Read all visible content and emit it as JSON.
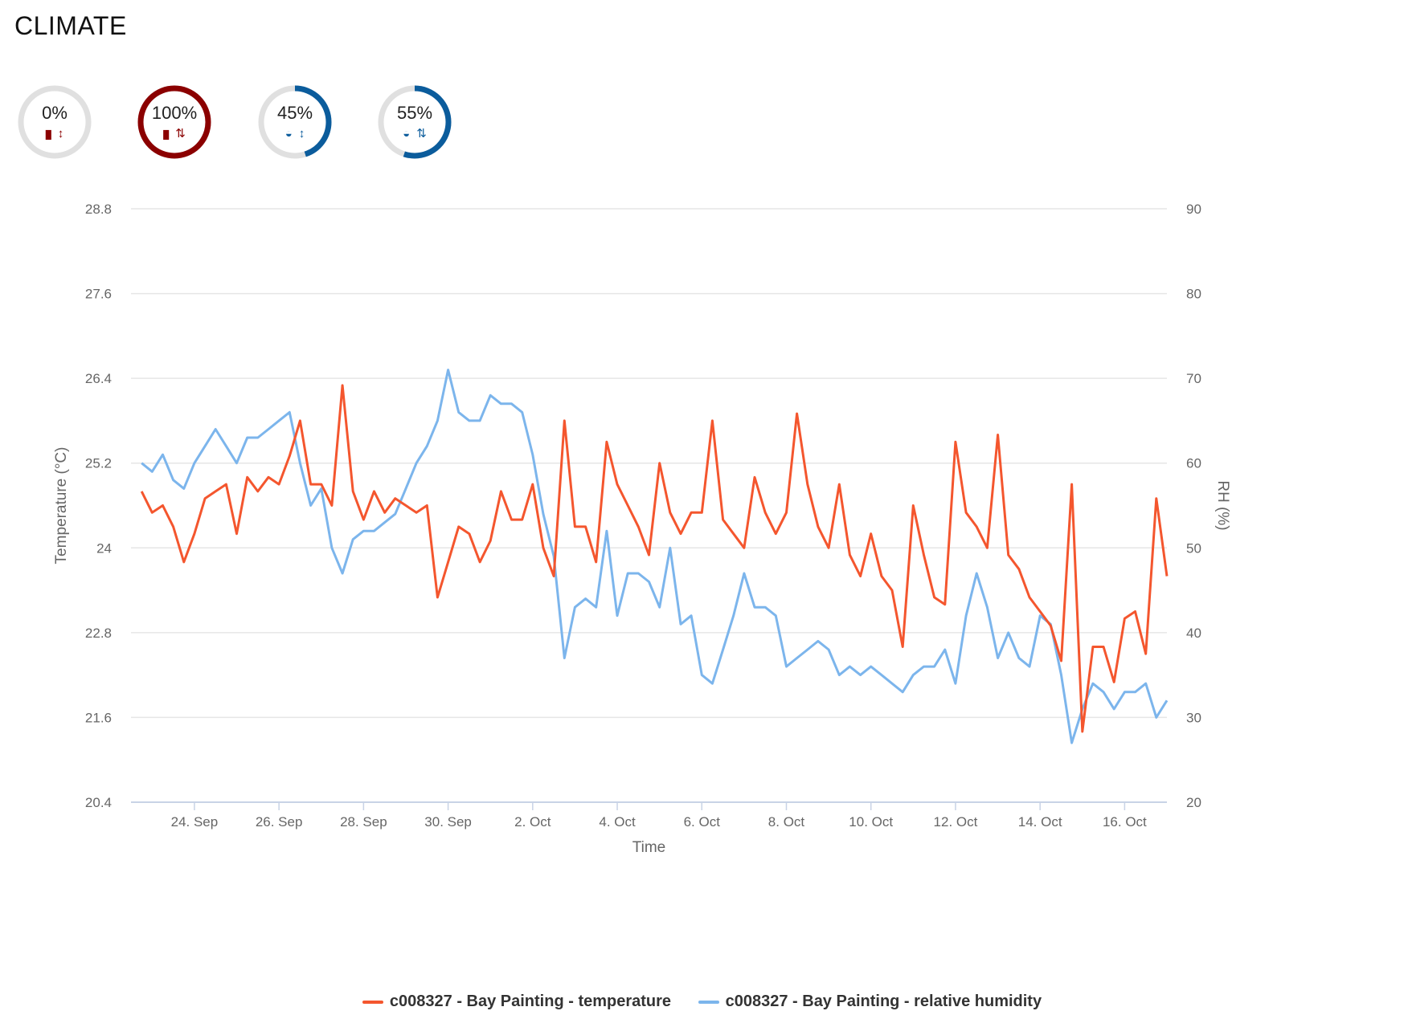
{
  "page": {
    "title": "CLIMATE"
  },
  "colors": {
    "temperature": "#f4562e",
    "humidity": "#7cb5ec",
    "temp_gauge": "#8b0000",
    "rh_gauge": "#0b5c9c",
    "track": "#e0e0e0"
  },
  "gauges": [
    {
      "label": "0%",
      "fraction": 0.0,
      "kind": "temperature",
      "mode": "single",
      "icons": [
        "thermometer-icon",
        "arrow-up-down-icon"
      ]
    },
    {
      "label": "100%",
      "fraction": 1.0,
      "kind": "temperature",
      "mode": "double",
      "icons": [
        "thermometer-icon",
        "arrows-up-down-icon"
      ]
    },
    {
      "label": "45%",
      "fraction": 0.45,
      "kind": "humidity",
      "mode": "single",
      "icons": [
        "water-drop-icon",
        "arrow-up-down-icon"
      ]
    },
    {
      "label": "55%",
      "fraction": 0.55,
      "kind": "humidity",
      "mode": "double",
      "icons": [
        "water-drop-icon",
        "arrows-up-down-icon"
      ]
    }
  ],
  "chart_data": {
    "type": "line",
    "xlabel": "Time",
    "ylabel": "Temperature (°C)",
    "y2label": "RH (%)",
    "xlim": [
      "2023-09-22T12:00",
      "2023-10-17T00:00"
    ],
    "ylim": [
      20.4,
      28.8
    ],
    "y2lim": [
      20,
      90
    ],
    "yticks": [
      "28.8",
      "27.6",
      "26.4",
      "25.2",
      "24",
      "22.8",
      "21.6",
      "20.4"
    ],
    "y2ticks": [
      "90",
      "80",
      "70",
      "60",
      "50",
      "40",
      "30",
      "20"
    ],
    "xticks": [
      {
        "label": "24. Sep",
        "date": "2023-09-24"
      },
      {
        "label": "26. Sep",
        "date": "2023-09-26"
      },
      {
        "label": "28. Sep",
        "date": "2023-09-28"
      },
      {
        "label": "30. Sep",
        "date": "2023-09-30"
      },
      {
        "label": "2. Oct",
        "date": "2023-10-02"
      },
      {
        "label": "4. Oct",
        "date": "2023-10-04"
      },
      {
        "label": "6. Oct",
        "date": "2023-10-06"
      },
      {
        "label": "8. Oct",
        "date": "2023-10-08"
      },
      {
        "label": "10. Oct",
        "date": "2023-10-10"
      },
      {
        "label": "12. Oct",
        "date": "2023-10-12"
      },
      {
        "label": "14. Oct",
        "date": "2023-10-14"
      },
      {
        "label": "16. Oct",
        "date": "2023-10-16"
      }
    ],
    "grid": true,
    "legend_position": "bottom-center",
    "series": [
      {
        "name": "c008327 - Bay Painting - temperature",
        "axis": "left",
        "points": [
          [
            "2023-09-22T18:00",
            24.8
          ],
          [
            "2023-09-23T00:00",
            24.5
          ],
          [
            "2023-09-23T06:00",
            24.6
          ],
          [
            "2023-09-23T12:00",
            24.3
          ],
          [
            "2023-09-23T18:00",
            23.8
          ],
          [
            "2023-09-24T00:00",
            24.2
          ],
          [
            "2023-09-24T06:00",
            24.7
          ],
          [
            "2023-09-24T12:00",
            24.8
          ],
          [
            "2023-09-24T18:00",
            24.9
          ],
          [
            "2023-09-25T00:00",
            24.2
          ],
          [
            "2023-09-25T06:00",
            25.0
          ],
          [
            "2023-09-25T12:00",
            24.8
          ],
          [
            "2023-09-25T18:00",
            25.0
          ],
          [
            "2023-09-26T00:00",
            24.9
          ],
          [
            "2023-09-26T06:00",
            25.3
          ],
          [
            "2023-09-26T12:00",
            25.8
          ],
          [
            "2023-09-26T18:00",
            24.9
          ],
          [
            "2023-09-27T00:00",
            24.9
          ],
          [
            "2023-09-27T06:00",
            24.6
          ],
          [
            "2023-09-27T12:00",
            26.3
          ],
          [
            "2023-09-27T18:00",
            24.8
          ],
          [
            "2023-09-28T00:00",
            24.4
          ],
          [
            "2023-09-28T06:00",
            24.8
          ],
          [
            "2023-09-28T12:00",
            24.5
          ],
          [
            "2023-09-28T18:00",
            24.7
          ],
          [
            "2023-09-29T00:00",
            24.6
          ],
          [
            "2023-09-29T06:00",
            24.5
          ],
          [
            "2023-09-29T12:00",
            24.6
          ],
          [
            "2023-09-29T18:00",
            23.3
          ],
          [
            "2023-09-30T00:00",
            23.8
          ],
          [
            "2023-09-30T06:00",
            24.3
          ],
          [
            "2023-09-30T12:00",
            24.2
          ],
          [
            "2023-09-30T18:00",
            23.8
          ],
          [
            "2023-10-01T00:00",
            24.1
          ],
          [
            "2023-10-01T06:00",
            24.8
          ],
          [
            "2023-10-01T12:00",
            24.4
          ],
          [
            "2023-10-01T18:00",
            24.4
          ],
          [
            "2023-10-02T00:00",
            24.9
          ],
          [
            "2023-10-02T06:00",
            24.0
          ],
          [
            "2023-10-02T12:00",
            23.6
          ],
          [
            "2023-10-02T18:00",
            25.8
          ],
          [
            "2023-10-03T00:00",
            24.3
          ],
          [
            "2023-10-03T06:00",
            24.3
          ],
          [
            "2023-10-03T12:00",
            23.8
          ],
          [
            "2023-10-03T18:00",
            25.5
          ],
          [
            "2023-10-04T00:00",
            24.9
          ],
          [
            "2023-10-04T06:00",
            24.6
          ],
          [
            "2023-10-04T12:00",
            24.3
          ],
          [
            "2023-10-04T18:00",
            23.9
          ],
          [
            "2023-10-05T00:00",
            25.2
          ],
          [
            "2023-10-05T06:00",
            24.5
          ],
          [
            "2023-10-05T12:00",
            24.2
          ],
          [
            "2023-10-05T18:00",
            24.5
          ],
          [
            "2023-10-06T00:00",
            24.5
          ],
          [
            "2023-10-06T06:00",
            25.8
          ],
          [
            "2023-10-06T12:00",
            24.4
          ],
          [
            "2023-10-06T18:00",
            24.2
          ],
          [
            "2023-10-07T00:00",
            24.0
          ],
          [
            "2023-10-07T06:00",
            25.0
          ],
          [
            "2023-10-07T12:00",
            24.5
          ],
          [
            "2023-10-07T18:00",
            24.2
          ],
          [
            "2023-10-08T00:00",
            24.5
          ],
          [
            "2023-10-08T06:00",
            25.9
          ],
          [
            "2023-10-08T12:00",
            24.9
          ],
          [
            "2023-10-08T18:00",
            24.3
          ],
          [
            "2023-10-09T00:00",
            24.0
          ],
          [
            "2023-10-09T06:00",
            24.9
          ],
          [
            "2023-10-09T12:00",
            23.9
          ],
          [
            "2023-10-09T18:00",
            23.6
          ],
          [
            "2023-10-10T00:00",
            24.2
          ],
          [
            "2023-10-10T06:00",
            23.6
          ],
          [
            "2023-10-10T12:00",
            23.4
          ],
          [
            "2023-10-10T18:00",
            22.6
          ],
          [
            "2023-10-11T00:00",
            24.6
          ],
          [
            "2023-10-11T06:00",
            23.9
          ],
          [
            "2023-10-11T12:00",
            23.3
          ],
          [
            "2023-10-11T18:00",
            23.2
          ],
          [
            "2023-10-12T00:00",
            25.5
          ],
          [
            "2023-10-12T06:00",
            24.5
          ],
          [
            "2023-10-12T12:00",
            24.3
          ],
          [
            "2023-10-12T18:00",
            24.0
          ],
          [
            "2023-10-13T00:00",
            25.6
          ],
          [
            "2023-10-13T06:00",
            23.9
          ],
          [
            "2023-10-13T12:00",
            23.7
          ],
          [
            "2023-10-13T18:00",
            23.3
          ],
          [
            "2023-10-14T00:00",
            23.1
          ],
          [
            "2023-10-14T06:00",
            22.9
          ],
          [
            "2023-10-14T12:00",
            22.4
          ],
          [
            "2023-10-14T18:00",
            24.9
          ],
          [
            "2023-10-15T00:00",
            21.4
          ],
          [
            "2023-10-15T06:00",
            22.6
          ],
          [
            "2023-10-15T12:00",
            22.6
          ],
          [
            "2023-10-15T18:00",
            22.1
          ],
          [
            "2023-10-16T00:00",
            23.0
          ],
          [
            "2023-10-16T06:00",
            23.1
          ],
          [
            "2023-10-16T12:00",
            22.5
          ],
          [
            "2023-10-16T18:00",
            24.7
          ],
          [
            "2023-10-17T00:00",
            23.6
          ]
        ]
      },
      {
        "name": "c008327 - Bay Painting - relative humidity",
        "axis": "right",
        "points": [
          [
            "2023-09-22T18:00",
            60
          ],
          [
            "2023-09-23T00:00",
            59
          ],
          [
            "2023-09-23T06:00",
            61
          ],
          [
            "2023-09-23T12:00",
            58
          ],
          [
            "2023-09-23T18:00",
            57
          ],
          [
            "2023-09-24T00:00",
            60
          ],
          [
            "2023-09-24T06:00",
            62
          ],
          [
            "2023-09-24T12:00",
            64
          ],
          [
            "2023-09-24T18:00",
            62
          ],
          [
            "2023-09-25T00:00",
            60
          ],
          [
            "2023-09-25T06:00",
            63
          ],
          [
            "2023-09-25T12:00",
            63
          ],
          [
            "2023-09-25T18:00",
            64
          ],
          [
            "2023-09-26T00:00",
            65
          ],
          [
            "2023-09-26T06:00",
            66
          ],
          [
            "2023-09-26T12:00",
            60
          ],
          [
            "2023-09-26T18:00",
            55
          ],
          [
            "2023-09-27T00:00",
            57
          ],
          [
            "2023-09-27T06:00",
            50
          ],
          [
            "2023-09-27T12:00",
            47
          ],
          [
            "2023-09-27T18:00",
            51
          ],
          [
            "2023-09-28T00:00",
            52
          ],
          [
            "2023-09-28T06:00",
            52
          ],
          [
            "2023-09-28T12:00",
            53
          ],
          [
            "2023-09-28T18:00",
            54
          ],
          [
            "2023-09-29T00:00",
            57
          ],
          [
            "2023-09-29T06:00",
            60
          ],
          [
            "2023-09-29T12:00",
            62
          ],
          [
            "2023-09-29T18:00",
            65
          ],
          [
            "2023-09-30T00:00",
            71
          ],
          [
            "2023-09-30T06:00",
            66
          ],
          [
            "2023-09-30T12:00",
            65
          ],
          [
            "2023-09-30T18:00",
            65
          ],
          [
            "2023-10-01T00:00",
            68
          ],
          [
            "2023-10-01T06:00",
            67
          ],
          [
            "2023-10-01T12:00",
            67
          ],
          [
            "2023-10-01T18:00",
            66
          ],
          [
            "2023-10-02T00:00",
            61
          ],
          [
            "2023-10-02T06:00",
            54
          ],
          [
            "2023-10-02T12:00",
            49
          ],
          [
            "2023-10-02T18:00",
            37
          ],
          [
            "2023-10-03T00:00",
            43
          ],
          [
            "2023-10-03T06:00",
            44
          ],
          [
            "2023-10-03T12:00",
            43
          ],
          [
            "2023-10-03T18:00",
            52
          ],
          [
            "2023-10-04T00:00",
            42
          ],
          [
            "2023-10-04T06:00",
            47
          ],
          [
            "2023-10-04T12:00",
            47
          ],
          [
            "2023-10-04T18:00",
            46
          ],
          [
            "2023-10-05T00:00",
            43
          ],
          [
            "2023-10-05T06:00",
            50
          ],
          [
            "2023-10-05T12:00",
            41
          ],
          [
            "2023-10-05T18:00",
            42
          ],
          [
            "2023-10-06T00:00",
            35
          ],
          [
            "2023-10-06T06:00",
            34
          ],
          [
            "2023-10-06T12:00",
            38
          ],
          [
            "2023-10-06T18:00",
            42
          ],
          [
            "2023-10-07T00:00",
            47
          ],
          [
            "2023-10-07T06:00",
            43
          ],
          [
            "2023-10-07T12:00",
            43
          ],
          [
            "2023-10-07T18:00",
            42
          ],
          [
            "2023-10-08T00:00",
            36
          ],
          [
            "2023-10-08T06:00",
            37
          ],
          [
            "2023-10-08T12:00",
            38
          ],
          [
            "2023-10-08T18:00",
            39
          ],
          [
            "2023-10-09T00:00",
            38
          ],
          [
            "2023-10-09T06:00",
            35
          ],
          [
            "2023-10-09T12:00",
            36
          ],
          [
            "2023-10-09T18:00",
            35
          ],
          [
            "2023-10-10T00:00",
            36
          ],
          [
            "2023-10-10T06:00",
            35
          ],
          [
            "2023-10-10T12:00",
            34
          ],
          [
            "2023-10-10T18:00",
            33
          ],
          [
            "2023-10-11T00:00",
            35
          ],
          [
            "2023-10-11T06:00",
            36
          ],
          [
            "2023-10-11T12:00",
            36
          ],
          [
            "2023-10-11T18:00",
            38
          ],
          [
            "2023-10-12T00:00",
            34
          ],
          [
            "2023-10-12T06:00",
            42
          ],
          [
            "2023-10-12T12:00",
            47
          ],
          [
            "2023-10-12T18:00",
            43
          ],
          [
            "2023-10-13T00:00",
            37
          ],
          [
            "2023-10-13T06:00",
            40
          ],
          [
            "2023-10-13T12:00",
            37
          ],
          [
            "2023-10-13T18:00",
            36
          ],
          [
            "2023-10-14T00:00",
            42
          ],
          [
            "2023-10-14T06:00",
            41
          ],
          [
            "2023-10-14T12:00",
            35
          ],
          [
            "2023-10-14T18:00",
            27
          ],
          [
            "2023-10-15T00:00",
            31
          ],
          [
            "2023-10-15T06:00",
            34
          ],
          [
            "2023-10-15T12:00",
            33
          ],
          [
            "2023-10-15T18:00",
            31
          ],
          [
            "2023-10-16T00:00",
            33
          ],
          [
            "2023-10-16T06:00",
            33
          ],
          [
            "2023-10-16T12:00",
            34
          ],
          [
            "2023-10-16T18:00",
            30
          ],
          [
            "2023-10-17T00:00",
            32
          ]
        ]
      }
    ]
  }
}
